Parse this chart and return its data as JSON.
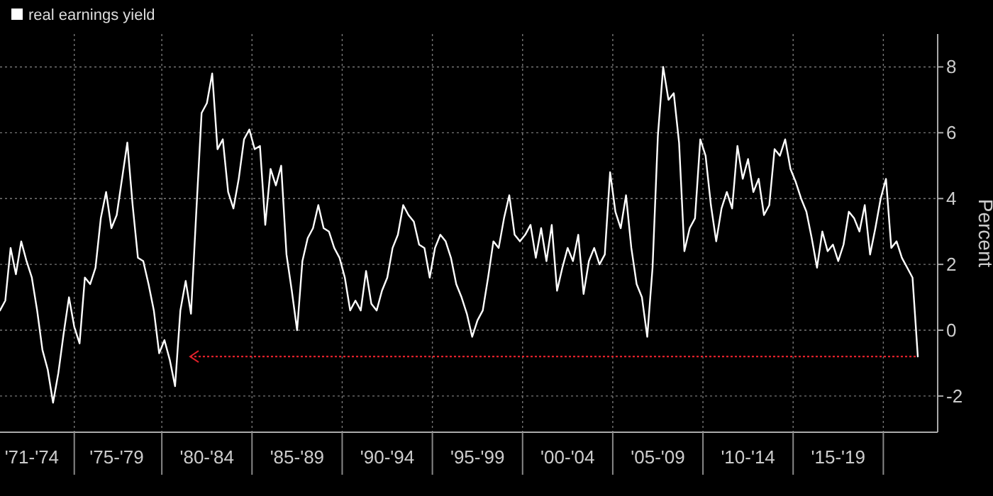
{
  "chart_data": {
    "type": "line",
    "ylabel": "Percent",
    "legend": "top left",
    "grid": true,
    "ylim": [
      -3.1,
      9
    ],
    "yticks": [
      -2,
      0,
      2,
      4,
      6,
      8
    ],
    "categories": [
      null,
      null,
      null,
      null,
      null,
      null,
      "'71-'74",
      null,
      null,
      null,
      null,
      null,
      null,
      null,
      null,
      null,
      null,
      null,
      null,
      null,
      null,
      null,
      "'75-'79",
      null,
      null,
      null,
      null,
      null,
      null,
      null,
      null,
      null,
      null,
      null,
      null,
      null,
      null,
      null,
      null,
      "'80-'84",
      null,
      null,
      null,
      null,
      null,
      null,
      null,
      null,
      null,
      null,
      null,
      null,
      null,
      null,
      null,
      null,
      "'85-'89",
      null,
      null,
      null,
      null,
      null,
      null,
      null,
      null,
      null,
      null,
      null,
      null,
      null,
      null,
      null,
      null,
      "'90-'94",
      null,
      null,
      null,
      null,
      null,
      null,
      null,
      null,
      null,
      null,
      null,
      null,
      null,
      null,
      null,
      null,
      "'95-'99",
      null,
      null,
      null,
      null,
      null,
      null,
      null,
      null,
      null,
      null,
      null,
      null,
      null,
      null,
      null,
      null,
      "'00-'04",
      null,
      null,
      null,
      null,
      null,
      null,
      null,
      null,
      null,
      null,
      null,
      null,
      null,
      null,
      null,
      null,
      "'05-'09",
      null,
      null,
      null,
      null,
      null,
      null,
      null,
      null,
      null,
      null,
      null,
      null,
      null,
      null,
      null,
      null,
      "'10-'14",
      null,
      null,
      null,
      null,
      null,
      null,
      null,
      null,
      null,
      null,
      null,
      null,
      null,
      null,
      null,
      null,
      "'15-'19",
      null,
      null,
      null,
      null,
      null,
      null,
      null,
      null,
      null,
      null,
      null,
      null,
      null,
      null,
      null
    ],
    "ref_lines": [
      {
        "axis": "y",
        "value": -0.8,
        "color": "#e0202a",
        "line_style": "dotted"
      }
    ],
    "series": [
      {
        "name": "real earnings yield",
        "color": "#ffffff",
        "values": [
          0.6,
          0.9,
          2.5,
          1.7,
          2.7,
          2.1,
          1.6,
          0.6,
          -0.6,
          -1.2,
          -2.2,
          -1.3,
          -0.1,
          1.0,
          0.1,
          -0.4,
          1.6,
          1.4,
          1.9,
          3.4,
          4.2,
          3.1,
          3.5,
          4.6,
          5.7,
          3.8,
          2.2,
          2.1,
          1.4,
          0.6,
          -0.7,
          -0.3,
          -0.9,
          -1.7,
          0.6,
          1.5,
          0.5,
          3.6,
          6.6,
          6.9,
          7.8,
          5.5,
          5.8,
          4.2,
          3.7,
          4.6,
          5.8,
          6.1,
          5.5,
          5.6,
          3.2,
          4.9,
          4.4,
          5.0,
          2.3,
          1.2,
          0.0,
          2.1,
          2.8,
          3.1,
          3.8,
          3.1,
          3.0,
          2.5,
          2.2,
          1.6,
          0.6,
          0.9,
          0.6,
          1.8,
          0.8,
          0.6,
          1.2,
          1.6,
          2.5,
          2.9,
          3.8,
          3.5,
          3.3,
          2.6,
          2.5,
          1.6,
          2.5,
          2.9,
          2.7,
          2.2,
          1.4,
          1.0,
          0.5,
          -0.2,
          0.3,
          0.6,
          1.6,
          2.7,
          2.5,
          3.4,
          4.1,
          2.9,
          2.7,
          2.9,
          3.2,
          2.2,
          3.1,
          2.1,
          3.2,
          1.2,
          1.9,
          2.5,
          2.1,
          2.9,
          1.1,
          2.1,
          2.5,
          2.0,
          2.3,
          4.8,
          3.6,
          3.1,
          4.1,
          2.5,
          1.4,
          1.0,
          -0.2,
          1.9,
          5.9,
          8.0,
          7.0,
          7.2,
          5.7,
          2.4,
          3.1,
          3.4,
          5.8,
          5.3,
          3.8,
          2.7,
          3.7,
          4.2,
          3.7,
          5.6,
          4.6,
          5.2,
          4.2,
          4.6,
          3.5,
          3.8,
          5.5,
          5.3,
          5.8,
          4.9,
          4.5,
          4.0,
          3.6,
          2.8,
          1.9,
          3.0,
          2.4,
          2.6,
          2.1,
          2.6,
          3.6,
          3.4,
          3.0,
          3.8,
          2.3,
          3.1,
          4.0,
          4.6,
          2.5,
          2.7,
          2.2,
          1.9,
          1.6,
          -0.8
        ]
      }
    ]
  }
}
